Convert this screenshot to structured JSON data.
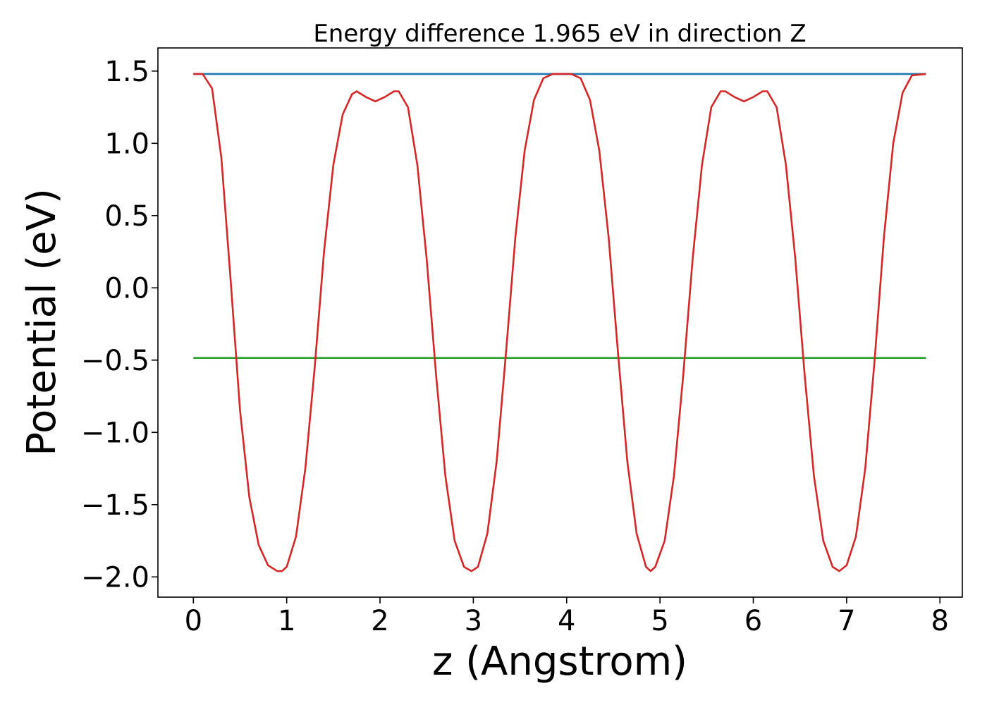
{
  "chart_data": {
    "type": "line",
    "title": "Energy difference 1.965 eV in direction Z",
    "xlabel": "z (Angstrom)",
    "ylabel": "Potential (eV)",
    "xlim": [
      -0.38,
      8.24
    ],
    "ylim": [
      -2.14,
      1.66
    ],
    "xticks": [
      0,
      1,
      2,
      3,
      4,
      5,
      6,
      7,
      8
    ],
    "xtick_labels": [
      "0",
      "1",
      "2",
      "3",
      "4",
      "5",
      "6",
      "7",
      "8"
    ],
    "yticks": [
      -2.0,
      -1.5,
      -1.0,
      -0.5,
      0.0,
      0.5,
      1.0,
      1.5
    ],
    "ytick_labels": [
      "−2.0",
      "−1.5",
      "−1.0",
      "−0.5",
      "0.0",
      "0.5",
      "1.0",
      "1.5"
    ],
    "grid": false,
    "series": [
      {
        "color": "#1f77b4",
        "x": [
          0,
          7.85
        ],
        "y": [
          1.48,
          1.48
        ]
      },
      {
        "color": "#2ca02c",
        "x": [
          0,
          7.85
        ],
        "y": [
          -0.485,
          -0.485
        ]
      },
      {
        "color": "#d62728",
        "x": [
          0.0,
          0.1,
          0.2,
          0.3,
          0.4,
          0.5,
          0.6,
          0.7,
          0.8,
          0.9,
          0.95,
          1.0,
          1.1,
          1.2,
          1.3,
          1.4,
          1.5,
          1.6,
          1.7,
          1.75,
          1.85,
          1.95,
          2.05,
          2.15,
          2.2,
          2.3,
          2.4,
          2.5,
          2.6,
          2.7,
          2.8,
          2.9,
          2.98,
          3.05,
          3.15,
          3.25,
          3.35,
          3.45,
          3.55,
          3.65,
          3.75,
          3.85,
          3.95,
          4.05,
          4.15,
          4.25,
          4.35,
          4.45,
          4.55,
          4.65,
          4.75,
          4.85,
          4.9,
          4.95,
          5.05,
          5.15,
          5.25,
          5.35,
          5.45,
          5.55,
          5.65,
          5.7,
          5.8,
          5.9,
          6.0,
          6.1,
          6.15,
          6.25,
          6.35,
          6.45,
          6.55,
          6.65,
          6.75,
          6.85,
          6.92,
          7.0,
          7.1,
          7.2,
          7.3,
          7.4,
          7.5,
          7.6,
          7.7,
          7.85
        ],
        "y": [
          1.48,
          1.48,
          1.38,
          0.9,
          0.05,
          -0.85,
          -1.45,
          -1.78,
          -1.92,
          -1.96,
          -1.96,
          -1.93,
          -1.72,
          -1.25,
          -0.55,
          0.25,
          0.85,
          1.2,
          1.34,
          1.36,
          1.32,
          1.29,
          1.32,
          1.36,
          1.36,
          1.25,
          0.85,
          0.2,
          -0.6,
          -1.3,
          -1.75,
          -1.93,
          -1.96,
          -1.93,
          -1.7,
          -1.2,
          -0.45,
          0.35,
          0.95,
          1.3,
          1.45,
          1.48,
          1.48,
          1.48,
          1.45,
          1.3,
          0.95,
          0.35,
          -0.45,
          -1.2,
          -1.7,
          -1.93,
          -1.96,
          -1.93,
          -1.75,
          -1.3,
          -0.6,
          0.2,
          0.85,
          1.25,
          1.36,
          1.36,
          1.32,
          1.29,
          1.32,
          1.36,
          1.36,
          1.25,
          0.85,
          0.2,
          -0.6,
          -1.3,
          -1.75,
          -1.93,
          -1.96,
          -1.92,
          -1.72,
          -1.25,
          -0.5,
          0.35,
          1.0,
          1.35,
          1.47,
          1.48
        ]
      }
    ]
  }
}
